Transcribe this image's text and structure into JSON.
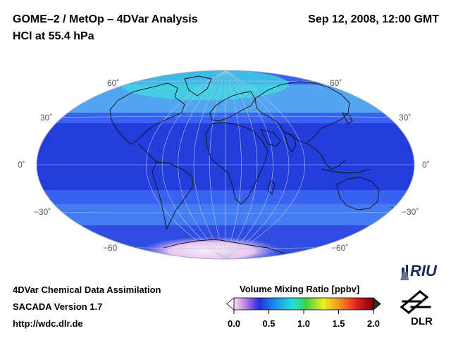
{
  "header": {
    "title": "GOME–2 / MetOp – 4DVar Analysis",
    "subtitle": "HCl at 55.4 hPa",
    "datetime": "Sep 12, 2008, 12:00 GMT"
  },
  "map": {
    "projection": "Hammer-Aitoff",
    "lat_labels": {
      "left": [
        "60˚",
        "30˚",
        "0˚",
        "−30˚",
        "−60"
      ],
      "right": [
        "60˚",
        "30˚",
        "0˚",
        "−30˚",
        "−60˚"
      ]
    },
    "field_colors": {
      "background": "#3a62f2",
      "tropics": "#1e37d8",
      "high_lat": "#57b3ef",
      "polar_north": "#3fe0e0",
      "south_pole": "#f2d9f2"
    }
  },
  "footer": {
    "line1": "4DVar Chemical Data Assimilation",
    "line2": "SACADA Version 1.7",
    "line3": "http://wdc.dlr.de"
  },
  "colorbar": {
    "title": "Volume Mixing Ratio [ppbv]",
    "ticks": [
      "0.0",
      "0.5",
      "1.0",
      "1.5",
      "2.0"
    ],
    "range": [
      0.0,
      2.0
    ],
    "colors": [
      "#f5e4f5",
      "#c080e0",
      "#2030e0",
      "#2090f0",
      "#20e0e0",
      "#40d040",
      "#f0f020",
      "#f09020",
      "#e02020",
      "#800000"
    ]
  },
  "logos": {
    "riu_text": "RIU",
    "dlr_text": "DLR"
  }
}
